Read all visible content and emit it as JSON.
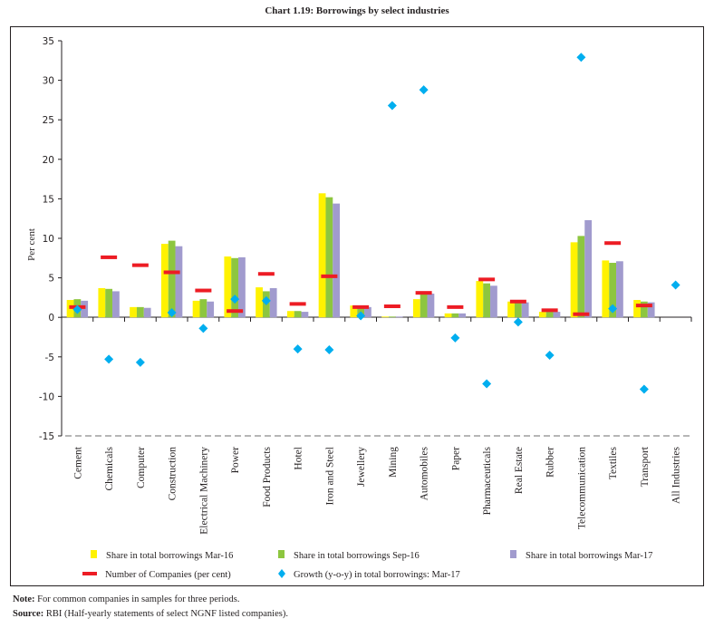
{
  "page": {
    "title": "Chart 1.19: Borrowings by select industries",
    "note_label": "Note:",
    "note_text": " For common companies in samples for three periods.",
    "source_label": "Source:",
    "source_text": " RBI (Half-yearly statements of select NGNF listed companies)."
  },
  "chart_data": {
    "type": "bar",
    "title": "Chart 1.19: Borrowings by select industries",
    "xlabel": "",
    "ylabel": "Per cent",
    "ylim": [
      -15,
      35
    ],
    "yticks": [
      35,
      30,
      25,
      20,
      15,
      10,
      5,
      0,
      -5,
      -10,
      -15
    ],
    "grid": false,
    "reference_line": {
      "y": -15,
      "style": "dashed"
    },
    "legend_position": "bottom",
    "categories": [
      "Cement",
      "Chemicals",
      "Computer",
      "Construction",
      "Electrical Machinery",
      "Power",
      "Food Products",
      "Hotel",
      "Iron and Steel",
      "Jewellery",
      "Mining",
      "Automobiles",
      "Paper",
      "Pharmaceuticals",
      "Real Estate",
      "Rubber",
      "Telecommunication",
      "Textiles",
      "Transport",
      "All Industries"
    ],
    "series": [
      {
        "name": "Share in total borrowings Mar-16",
        "kind": "bar",
        "color": "#fff200",
        "values": [
          2.2,
          3.7,
          1.3,
          9.3,
          2.1,
          7.7,
          3.8,
          0.8,
          15.7,
          1.5,
          0.1,
          2.3,
          0.5,
          4.6,
          2.0,
          0.7,
          9.5,
          7.2,
          2.2,
          null
        ]
      },
      {
        "name": "Share in total borrowings Sep-16",
        "kind": "bar",
        "color": "#8dc63f",
        "values": [
          2.3,
          3.6,
          1.3,
          9.7,
          2.3,
          7.5,
          3.3,
          0.8,
          15.2,
          1.5,
          0.1,
          2.9,
          0.5,
          4.3,
          1.9,
          0.7,
          10.3,
          6.9,
          2.0,
          null
        ]
      },
      {
        "name": "Share in total borrowings Mar-17",
        "kind": "bar",
        "color": "#a19bce",
        "values": [
          2.1,
          3.3,
          1.2,
          9.0,
          2.0,
          7.6,
          3.7,
          0.7,
          14.4,
          1.3,
          0.1,
          3.0,
          0.5,
          4.0,
          1.9,
          0.7,
          12.3,
          7.1,
          1.9,
          null
        ]
      },
      {
        "name": "Number of Companies (per cent)",
        "kind": "dash",
        "color": "#ed1c24",
        "values": [
          1.3,
          7.6,
          6.6,
          5.7,
          3.4,
          0.8,
          5.5,
          1.7,
          5.2,
          1.3,
          1.4,
          3.1,
          1.3,
          4.8,
          2.0,
          0.9,
          0.4,
          9.4,
          1.5,
          null
        ]
      },
      {
        "name": "Growth (y-o-y) in total borrowings: Mar-17",
        "kind": "diamond",
        "color": "#00aeef",
        "values": [
          1.0,
          -5.3,
          -5.7,
          0.6,
          -1.4,
          2.3,
          2.1,
          -4.0,
          -4.1,
          0.2,
          26.8,
          28.8,
          -2.6,
          -8.4,
          -0.6,
          -4.8,
          32.9,
          1.1,
          -9.1,
          4.1
        ]
      }
    ]
  }
}
